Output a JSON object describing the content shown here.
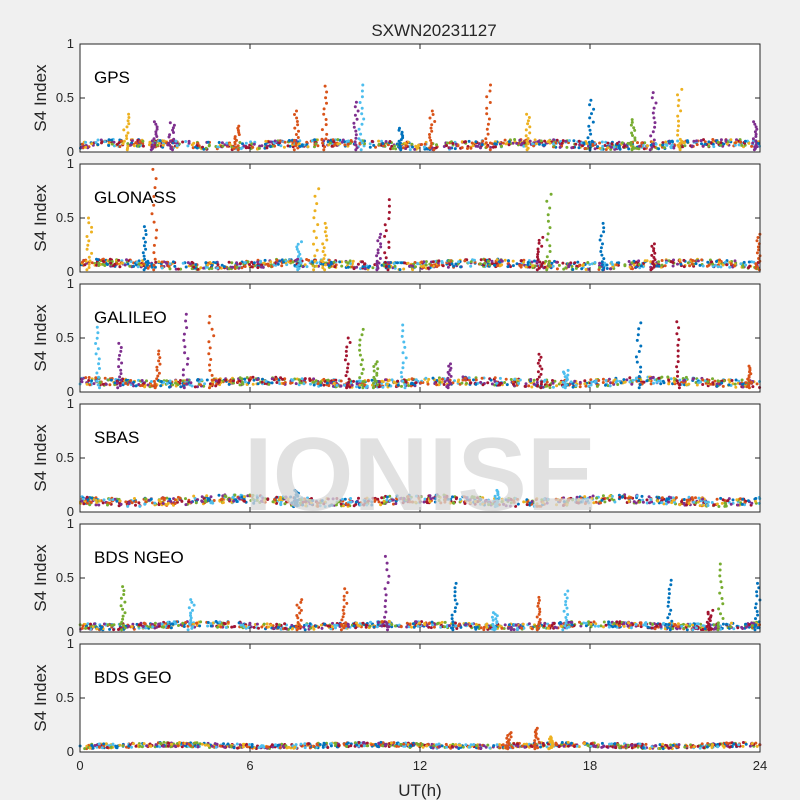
{
  "chart_data": {
    "type": "scatter",
    "title": "SXWN20231127",
    "xlabel": "UT(h)",
    "ylabel": "S4 Index",
    "xlim": [
      0,
      24
    ],
    "ylim": [
      0,
      1
    ],
    "xticks": [
      0,
      6,
      12,
      18,
      24
    ],
    "yticks": [
      0,
      0.5,
      1
    ],
    "xtick_labels": [
      "0",
      "6",
      "12",
      "18",
      "24"
    ],
    "ytick_labels": [
      "0",
      "0.5",
      "1"
    ],
    "watermark": "IONISE",
    "colors": [
      "#0072BD",
      "#D95319",
      "#EDB120",
      "#7E2F8E",
      "#77AC30",
      "#4DBEEE",
      "#A2142F"
    ],
    "panels": [
      {
        "label": "GPS",
        "baseline": [
          0.02,
          0.12
        ],
        "peaks": [
          {
            "x": 1.6,
            "y": 0.35,
            "c": 2
          },
          {
            "x": 2.6,
            "y": 0.28,
            "c": 3
          },
          {
            "x": 3.2,
            "y": 0.27,
            "c": 3
          },
          {
            "x": 5.5,
            "y": 0.24,
            "c": 1
          },
          {
            "x": 7.6,
            "y": 0.38,
            "c": 1
          },
          {
            "x": 8.6,
            "y": 0.61,
            "c": 1
          },
          {
            "x": 9.9,
            "y": 0.62,
            "c": 5
          },
          {
            "x": 9.7,
            "y": 0.46,
            "c": 3
          },
          {
            "x": 11.3,
            "y": 0.22,
            "c": 0
          },
          {
            "x": 12.4,
            "y": 0.38,
            "c": 1
          },
          {
            "x": 14.4,
            "y": 0.62,
            "c": 1
          },
          {
            "x": 15.8,
            "y": 0.35,
            "c": 2
          },
          {
            "x": 18.0,
            "y": 0.48,
            "c": 0
          },
          {
            "x": 20.2,
            "y": 0.55,
            "c": 3
          },
          {
            "x": 21.1,
            "y": 0.58,
            "c": 2
          },
          {
            "x": 23.8,
            "y": 0.28,
            "c": 3
          },
          {
            "x": 19.5,
            "y": 0.3,
            "c": 4
          }
        ]
      },
      {
        "label": "GLONASS",
        "baseline": [
          0.02,
          0.12
        ],
        "peaks": [
          {
            "x": 0.3,
            "y": 0.5,
            "c": 2
          },
          {
            "x": 2.6,
            "y": 0.95,
            "c": 1
          },
          {
            "x": 2.3,
            "y": 0.42,
            "c": 0
          },
          {
            "x": 8.3,
            "y": 0.77,
            "c": 2
          },
          {
            "x": 8.6,
            "y": 0.45,
            "c": 2
          },
          {
            "x": 10.8,
            "y": 0.67,
            "c": 6
          },
          {
            "x": 10.5,
            "y": 0.35,
            "c": 3
          },
          {
            "x": 16.5,
            "y": 0.72,
            "c": 4
          },
          {
            "x": 16.2,
            "y": 0.32,
            "c": 6
          },
          {
            "x": 18.4,
            "y": 0.45,
            "c": 0
          },
          {
            "x": 7.7,
            "y": 0.28,
            "c": 5
          },
          {
            "x": 20.2,
            "y": 0.26,
            "c": 6
          },
          {
            "x": 23.9,
            "y": 0.35,
            "c": 1
          }
        ]
      },
      {
        "label": "GALILEO",
        "baseline": [
          0.04,
          0.14
        ],
        "peaks": [
          {
            "x": 0.6,
            "y": 0.6,
            "c": 5
          },
          {
            "x": 1.4,
            "y": 0.45,
            "c": 3
          },
          {
            "x": 2.7,
            "y": 0.38,
            "c": 1
          },
          {
            "x": 3.7,
            "y": 0.72,
            "c": 3
          },
          {
            "x": 4.6,
            "y": 0.7,
            "c": 1
          },
          {
            "x": 9.4,
            "y": 0.5,
            "c": 6
          },
          {
            "x": 9.9,
            "y": 0.58,
            "c": 4
          },
          {
            "x": 10.4,
            "y": 0.28,
            "c": 4
          },
          {
            "x": 11.4,
            "y": 0.62,
            "c": 5
          },
          {
            "x": 13.0,
            "y": 0.26,
            "c": 3
          },
          {
            "x": 16.2,
            "y": 0.35,
            "c": 6
          },
          {
            "x": 19.7,
            "y": 0.64,
            "c": 0
          },
          {
            "x": 21.1,
            "y": 0.65,
            "c": 6
          },
          {
            "x": 23.6,
            "y": 0.24,
            "c": 1
          },
          {
            "x": 17.1,
            "y": 0.2,
            "c": 5
          }
        ]
      },
      {
        "label": "SBAS",
        "baseline": [
          0.05,
          0.16
        ],
        "peaks": [
          {
            "x": 7.6,
            "y": 0.2,
            "c": 0
          },
          {
            "x": 14.7,
            "y": 0.2,
            "c": 5
          }
        ]
      },
      {
        "label": "BDS NGEO",
        "baseline": [
          0.02,
          0.1
        ],
        "peaks": [
          {
            "x": 1.5,
            "y": 0.42,
            "c": 4
          },
          {
            "x": 3.9,
            "y": 0.3,
            "c": 5
          },
          {
            "x": 7.7,
            "y": 0.3,
            "c": 1
          },
          {
            "x": 9.3,
            "y": 0.4,
            "c": 1
          },
          {
            "x": 10.8,
            "y": 0.7,
            "c": 3
          },
          {
            "x": 13.2,
            "y": 0.45,
            "c": 0
          },
          {
            "x": 14.6,
            "y": 0.18,
            "c": 5
          },
          {
            "x": 16.2,
            "y": 0.32,
            "c": 1
          },
          {
            "x": 17.1,
            "y": 0.38,
            "c": 5
          },
          {
            "x": 20.8,
            "y": 0.48,
            "c": 0
          },
          {
            "x": 22.6,
            "y": 0.63,
            "c": 4
          },
          {
            "x": 23.9,
            "y": 0.45,
            "c": 0
          },
          {
            "x": 22.2,
            "y": 0.2,
            "c": 6
          }
        ]
      },
      {
        "label": "BDS GEO",
        "baseline": [
          0.03,
          0.09
        ],
        "peaks": [
          {
            "x": 15.1,
            "y": 0.18,
            "c": 1
          },
          {
            "x": 16.1,
            "y": 0.22,
            "c": 1
          },
          {
            "x": 16.6,
            "y": 0.14,
            "c": 2
          }
        ]
      }
    ]
  }
}
